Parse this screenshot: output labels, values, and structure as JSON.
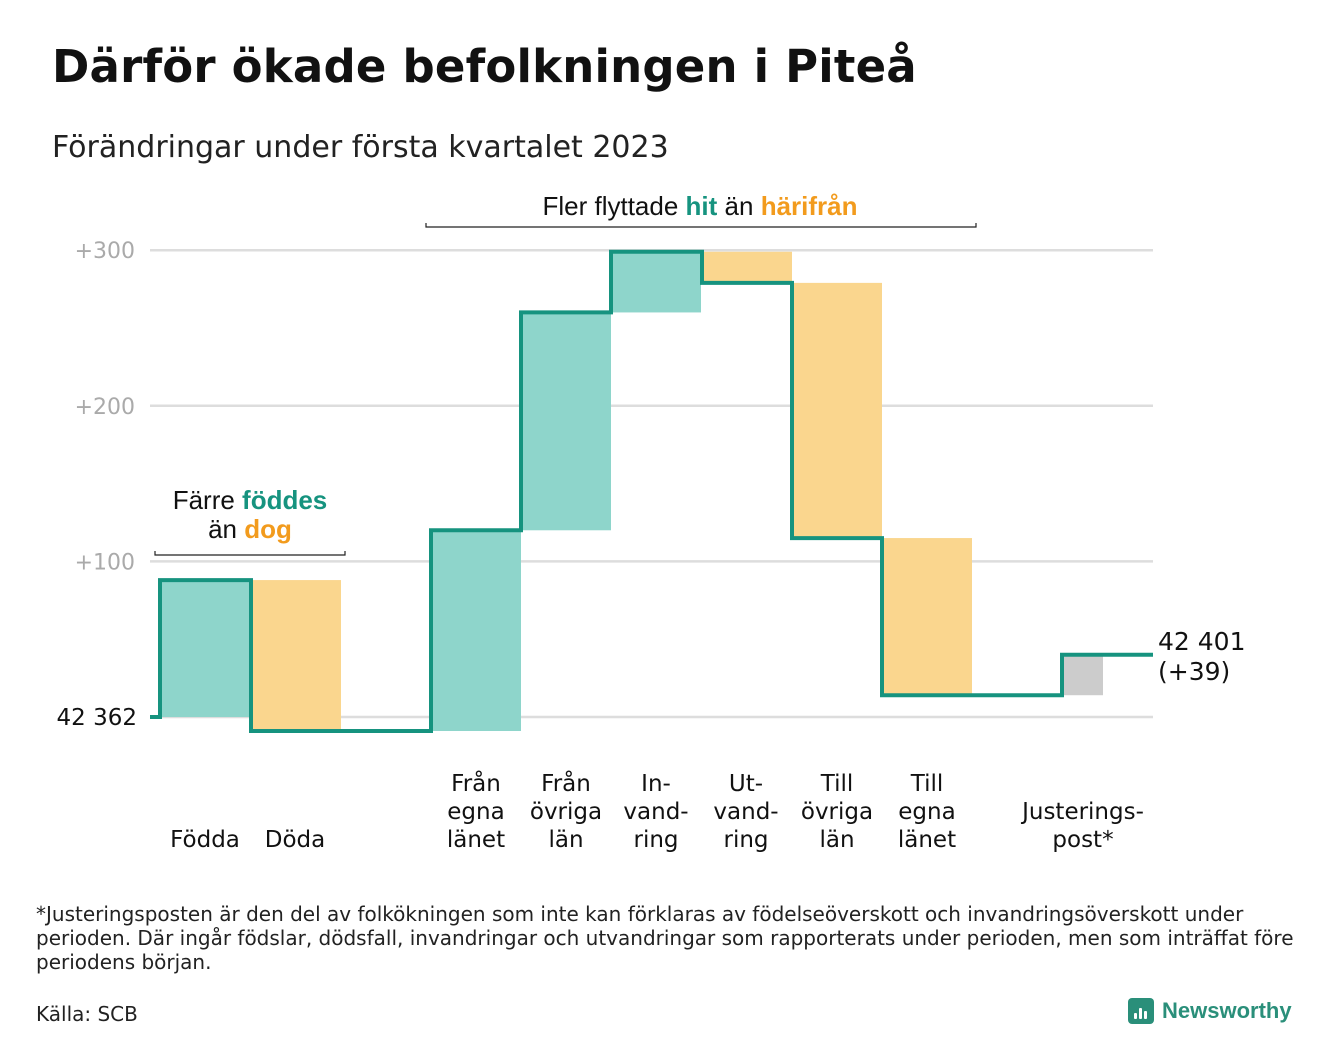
{
  "title": "Därför ökade befolkningen i Piteå",
  "subtitle": "Förändringar under första kvartalet 2023",
  "colors": {
    "increase": "#8ed5cb",
    "decrease": "#fad68e",
    "adjustment": "#cccccc",
    "line": "#16937f",
    "grid": "#dddddd",
    "tick_text": "#aaaaaa",
    "accent_teal": "#16937f",
    "accent_orange": "#f29b1d"
  },
  "chart_data": {
    "type": "waterfall",
    "start_label": "42 362",
    "end_label": "42 401",
    "end_change_label": "(+39)",
    "y_ticks": [
      {
        "value": 100,
        "label": "+100"
      },
      {
        "value": 200,
        "label": "+200"
      },
      {
        "value": 300,
        "label": "+300"
      }
    ],
    "ylim": [
      -15,
      310
    ],
    "steps": [
      {
        "category": [
          "Födda"
        ],
        "value": 88,
        "kind": "increase"
      },
      {
        "category": [
          "Döda"
        ],
        "value": -97,
        "kind": "decrease"
      },
      {
        "category": [
          "Från",
          "egna",
          "länet"
        ],
        "value": 129,
        "kind": "increase"
      },
      {
        "category": [
          "Från",
          "övriga",
          "län"
        ],
        "value": 140,
        "kind": "increase"
      },
      {
        "category": [
          "In-",
          "vand-",
          "ring"
        ],
        "value": 39,
        "kind": "increase"
      },
      {
        "category": [
          "Ut-",
          "vand-",
          "ring"
        ],
        "value": -20,
        "kind": "decrease"
      },
      {
        "category": [
          "Till",
          "övriga",
          "län"
        ],
        "value": -164,
        "kind": "decrease"
      },
      {
        "category": [
          "Till",
          "egna",
          "länet"
        ],
        "value": -101,
        "kind": "decrease"
      },
      {
        "category": [
          "Justerings-",
          "post*"
        ],
        "value": 26,
        "kind": "adjustment"
      }
    ],
    "annotations": {
      "births_deaths": {
        "prefix": "Färre",
        "highlight1": "föddes",
        "middle": "än",
        "highlight2": "dog"
      },
      "migration": {
        "prefix": "Fler flyttade",
        "highlight1": "hit",
        "middle": "än",
        "highlight2": "härifrån"
      }
    }
  },
  "footnote": "*Justeringsposten är den del av folkökningen som inte kan förklaras av födelseöverskott och invandringsöverskott under perioden. Där ingår födslar, dödsfall, invandringar och utvandringar som rapporterats under perioden, men som inträffat före periodens början.",
  "source": "Källa: SCB",
  "brand": {
    "name": "Newsworthy",
    "icon": "newsworthy-logo-icon"
  }
}
